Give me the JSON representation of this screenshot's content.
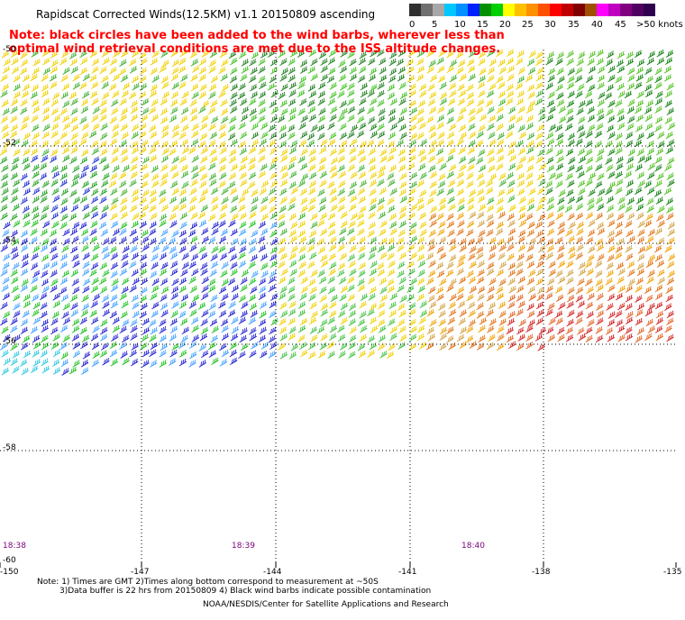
{
  "title": "Rapidscat Corrected Winds(12.5KM) v1.1 20150809 ascending",
  "note_line1": "Note: black circles have been added to the wind barbs, wherever less than",
  "note_line2": "optimal wind retrieval conditions are met due to the ISS altitude changes.",
  "legend": {
    "labels": [
      "0",
      "5",
      "10",
      "15",
      "20",
      "25",
      "30",
      "35",
      "40",
      "45",
      ">50 knots"
    ],
    "colors": [
      "#303030",
      "#707070",
      "#a8a8a8",
      "#00c8ff",
      "#0090ff",
      "#0020ff",
      "#009000",
      "#00d000",
      "#ffff00",
      "#ffc000",
      "#ff9000",
      "#ff5000",
      "#ff0000",
      "#c00000",
      "#800000",
      "#a05000",
      "#ff00ff",
      "#c000c0",
      "#800080",
      "#500060",
      "#300050"
    ]
  },
  "lat_labels": [
    "-50",
    "-52",
    "-54",
    "-56",
    "-58",
    "-60"
  ],
  "lon_labels": [
    "-150",
    "-147",
    "-144",
    "-141",
    "-138",
    "-135"
  ],
  "time_labels": [
    "18:38",
    "18:39",
    "18:40"
  ],
  "footnote_line1": "Note: 1) Times are GMT 2)Times along bottom correspond to measurement at ~50S",
  "footnote_line2": "3)Data buffer is 22 hrs from 20150809 4) Black wind barbs indicate possible contamination",
  "credit": "NOAA/NESDIS/Center for Satellite Applications and Research"
}
